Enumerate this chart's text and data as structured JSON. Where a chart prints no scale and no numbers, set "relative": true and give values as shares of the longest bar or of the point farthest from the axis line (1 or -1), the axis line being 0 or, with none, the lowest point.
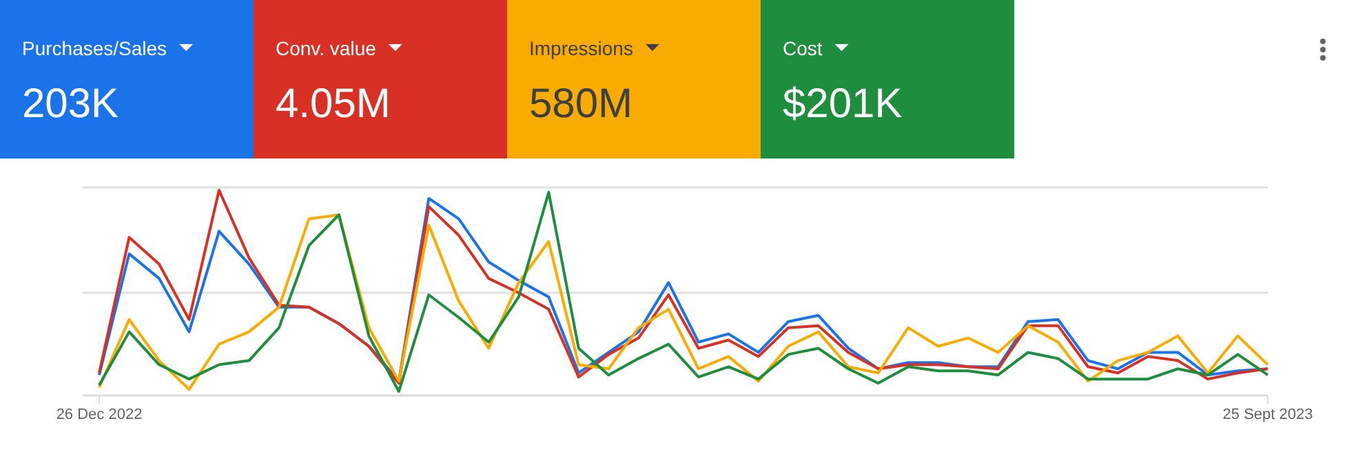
{
  "chart_data": [
    {
      "type": "other",
      "annotations": [
        "Purchases/Sales",
        "203K",
        "Conv. value",
        "4.05M",
        "Impressions",
        "580M",
        "Cost",
        "$201K"
      ]
    },
    {
      "type": "line",
      "relative": true,
      "marker": "none",
      "line_style": "solid",
      "ref_lines": [
        {
          "axis": "y",
          "value": 0.5,
          "color": "#e0e0e0"
        }
      ],
      "x": [
        "2022-12-26",
        "2023-01-02",
        "2023-01-09",
        "2023-01-16",
        "2023-01-23",
        "2023-01-30",
        "2023-02-06",
        "2023-02-13",
        "2023-02-20",
        "2023-02-27",
        "2023-03-06",
        "2023-03-13",
        "2023-03-20",
        "2023-03-27",
        "2023-04-03",
        "2023-04-10",
        "2023-04-17",
        "2023-04-24",
        "2023-05-01",
        "2023-05-08",
        "2023-05-15",
        "2023-05-22",
        "2023-05-29",
        "2023-06-05",
        "2023-06-12",
        "2023-06-19",
        "2023-06-26",
        "2023-07-03",
        "2023-07-10",
        "2023-07-17",
        "2023-07-24",
        "2023-07-31",
        "2023-08-07",
        "2023-08-14",
        "2023-08-21",
        "2023-08-28",
        "2023-09-04",
        "2023-09-11",
        "2023-09-18",
        "2023-09-25"
      ],
      "xlim": [
        "2022-12-26",
        "2023-09-25"
      ],
      "xticks": [
        {
          "value": "2022-12-26",
          "label": "26 Dec 2022"
        },
        {
          "value": "2023-09-25",
          "label": "25 Sept 2023"
        }
      ],
      "series": [
        {
          "color": "#1a73e8",
          "values": [
            0.1,
            0.69,
            0.57,
            0.31,
            0.8,
            0.64,
            0.43,
            0.43,
            0.35,
            0.24,
            0.07,
            0.96,
            0.86,
            0.65,
            0.56,
            0.48,
            0.11,
            0.21,
            0.31,
            0.55,
            0.26,
            0.3,
            0.21,
            0.36,
            0.39,
            0.23,
            0.13,
            0.16,
            0.16,
            0.14,
            0.14,
            0.36,
            0.37,
            0.17,
            0.13,
            0.21,
            0.21,
            0.1,
            0.12,
            0.13
          ]
        },
        {
          "color": "#d93025",
          "values": [
            0.11,
            0.77,
            0.64,
            0.37,
            1,
            0.67,
            0.44,
            0.43,
            0.35,
            0.24,
            0.06,
            0.92,
            0.78,
            0.57,
            0.5,
            0.42,
            0.09,
            0.2,
            0.28,
            0.49,
            0.23,
            0.27,
            0.19,
            0.33,
            0.34,
            0.21,
            0.13,
            0.15,
            0.15,
            0.14,
            0.13,
            0.34,
            0.34,
            0.14,
            0.11,
            0.19,
            0.17,
            0.08,
            0.11,
            0.13
          ]
        },
        {
          "color": "#f9ab00",
          "values": [
            0.04,
            0.37,
            0.17,
            0.03,
            0.25,
            0.31,
            0.43,
            0.86,
            0.88,
            0.33,
            0.07,
            0.83,
            0.46,
            0.23,
            0.55,
            0.75,
            0.15,
            0.13,
            0.33,
            0.42,
            0.13,
            0.19,
            0.07,
            0.24,
            0.31,
            0.14,
            0.11,
            0.33,
            0.24,
            0.28,
            0.21,
            0.34,
            0.26,
            0.07,
            0.17,
            0.21,
            0.29,
            0.11,
            0.29,
            0.15
          ]
        },
        {
          "color": "#1e8e3e",
          "values": [
            0.05,
            0.31,
            0.15,
            0.08,
            0.15,
            0.17,
            0.33,
            0.73,
            0.88,
            0.29,
            0.02,
            0.49,
            0.38,
            0.26,
            0.48,
            0.99,
            0.23,
            0.1,
            0.18,
            0.25,
            0.09,
            0.14,
            0.08,
            0.2,
            0.23,
            0.13,
            0.06,
            0.14,
            0.12,
            0.12,
            0.1,
            0.21,
            0.18,
            0.08,
            0.08,
            0.08,
            0.13,
            0.1,
            0.2,
            0.1
          ]
        }
      ]
    }
  ]
}
